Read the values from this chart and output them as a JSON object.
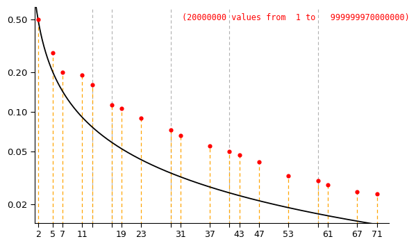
{
  "primes": [
    2,
    5,
    7,
    11,
    13,
    17,
    19,
    23,
    29,
    31,
    37,
    41,
    43,
    47,
    53,
    59,
    61,
    67,
    71
  ],
  "dot_values": [
    0.5,
    0.28,
    0.2,
    0.19,
    0.16,
    0.113,
    0.106,
    0.09,
    0.073,
    0.066,
    0.055,
    0.05,
    0.047,
    0.042,
    0.033,
    0.03,
    0.028,
    0.025,
    0.024
  ],
  "labeled_xticks": [
    2,
    5,
    7,
    11,
    19,
    23,
    31,
    37,
    43,
    47,
    53,
    61,
    67,
    71
  ],
  "labeled_xtick_labels": [
    "2",
    "5",
    "7",
    "11",
    "19",
    "23",
    "31",
    "37",
    "43",
    "47",
    "53",
    "61",
    "67",
    "71"
  ],
  "minor_xticks": [
    13,
    17,
    29,
    41,
    59
  ],
  "annotation": "(20000000 values from  1 to   999999970000000)",
  "dot_color": "#ff0000",
  "curve_color": "#000000",
  "orange_color": "#ffa500",
  "gray_color": "#b0b0b0",
  "background": "#ffffff",
  "ylim_min": 0.0145,
  "ylim_max": 0.62,
  "ytick_values": [
    0.02,
    0.05,
    0.1,
    0.2,
    0.5
  ],
  "ytick_labels": [
    "0.02",
    "0.05",
    "0.10",
    "0.20",
    "0.50"
  ],
  "xlim_min": 1.3,
  "xlim_max": 73.5
}
